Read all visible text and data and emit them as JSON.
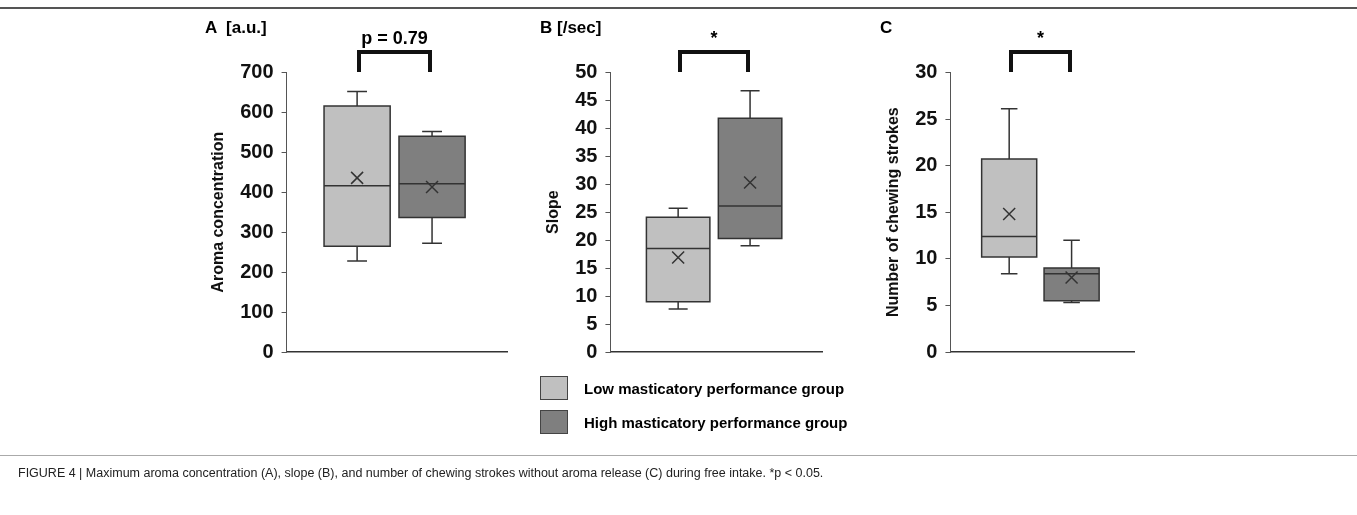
{
  "chart_data": [
    {
      "type": "box",
      "title": "A  [a.u.]",
      "ylabel": "Aroma concentration",
      "categories": [
        null
      ],
      "ylim": [
        0,
        700
      ],
      "yticks": [
        0,
        100,
        200,
        300,
        400,
        500,
        600,
        700
      ],
      "annotations": [
        "p = 0.79",
        "FIGURE 4 | Maximum aroma concentration (A), slope (B), and number of chewing strokes without aroma release (C) during free intake. *p < 0.05."
      ],
      "series": [
        {
          "color": "#c0c0c0",
          "boxes": [
            {
              "low": 228,
              "q1": 265,
              "median": 416,
              "q3": 616,
              "high": 652,
              "mean": 436
            }
          ]
        },
        {
          "color": "#7f7f7f",
          "boxes": [
            {
              "low": 272,
              "q1": 337,
              "median": 421,
              "q3": 540,
              "high": 552,
              "mean": 413
            }
          ]
        }
      ]
    },
    {
      "type": "box",
      "title": "B [/sec]",
      "ylabel": "Slope",
      "categories": [
        null
      ],
      "ylim": [
        0,
        50
      ],
      "yticks": [
        0,
        5,
        10,
        15,
        20,
        25,
        30,
        35,
        40,
        45,
        50
      ],
      "annotations": [
        "*"
      ],
      "legend": "bottom",
      "series": [
        {
          "name": "Low masticatory performance group",
          "color": "#c0c0c0",
          "boxes": [
            {
              "low": 7.7,
              "q1": 9.0,
              "median": 18.5,
              "q3": 24.1,
              "high": 25.7,
              "mean": 16.9
            }
          ]
        },
        {
          "name": "High masticatory performance group",
          "color": "#7f7f7f",
          "boxes": [
            {
              "low": 19.0,
              "q1": 20.3,
              "median": 26.1,
              "q3": 41.8,
              "high": 46.7,
              "mean": 30.3
            }
          ]
        }
      ]
    },
    {
      "type": "box",
      "title": "C",
      "ylabel": "Number of chewing strokes",
      "categories": [
        null
      ],
      "ylim": [
        0,
        30
      ],
      "yticks": [
        0,
        5,
        10,
        15,
        20,
        25,
        30
      ],
      "annotations": [
        "*"
      ],
      "series": [
        {
          "color": "#c0c0c0",
          "boxes": [
            {
              "low": 8.4,
              "q1": 10.2,
              "median": 12.4,
              "q3": 20.7,
              "high": 26.1,
              "mean": 14.8
            }
          ]
        },
        {
          "color": "#7f7f7f",
          "boxes": [
            {
              "low": 5.3,
              "q1": 5.5,
              "median": 8.4,
              "q3": 9.0,
              "high": 12.0,
              "mean": 8.0
            }
          ]
        }
      ]
    }
  ]
}
